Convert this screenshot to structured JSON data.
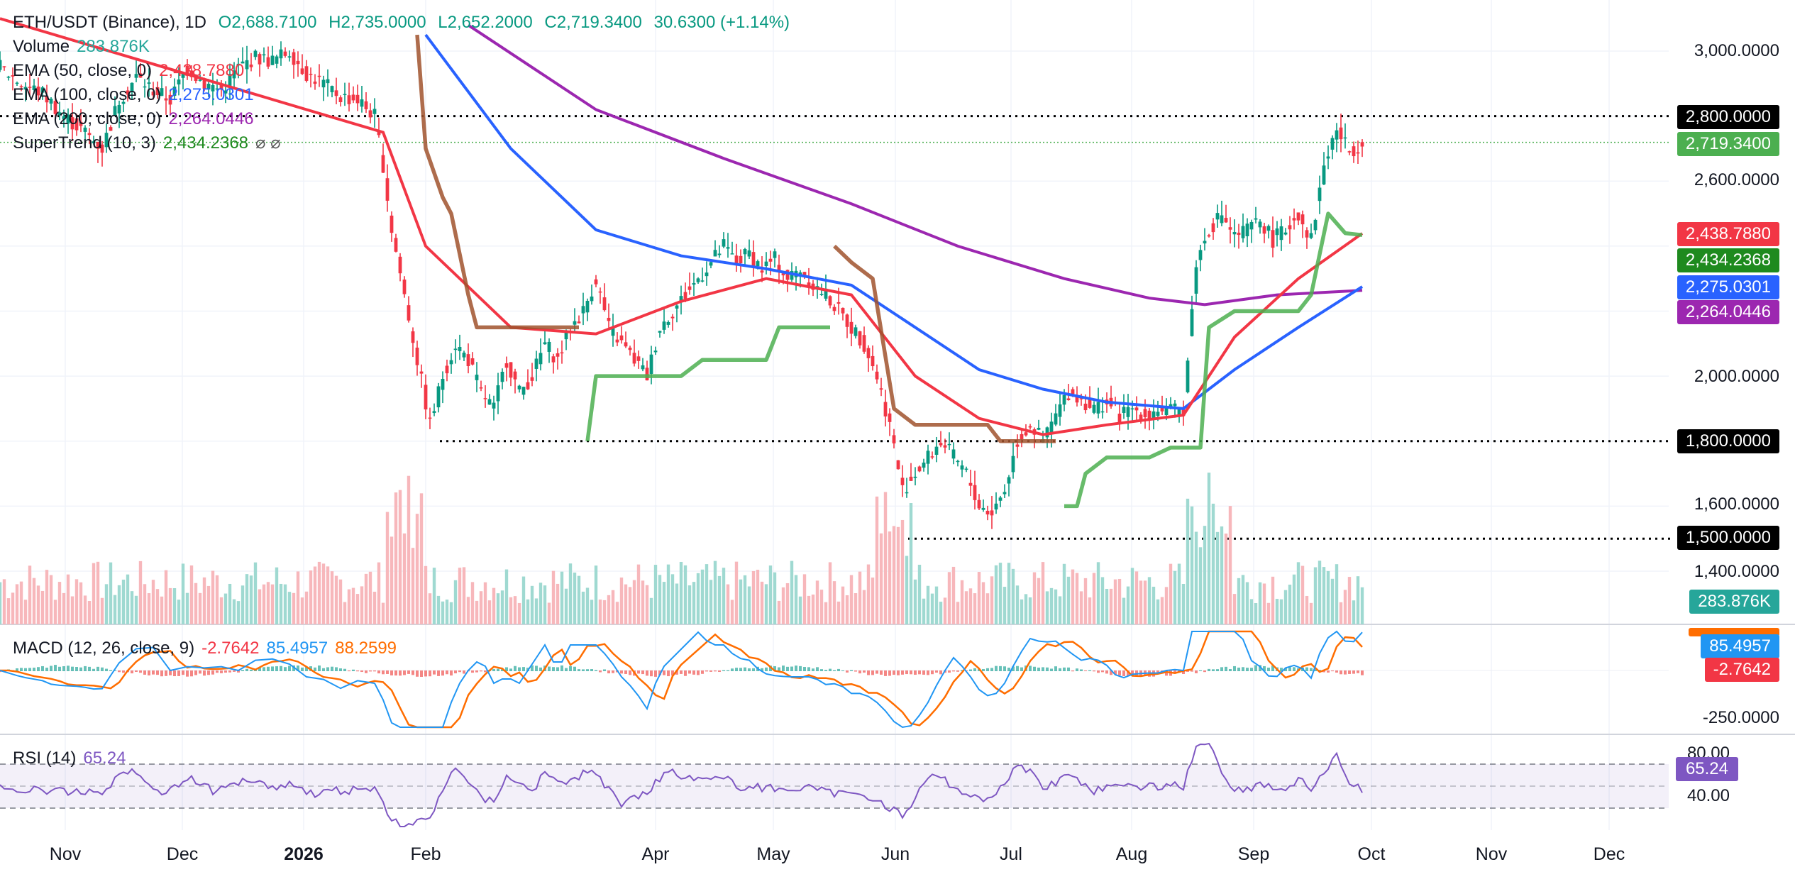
{
  "chart_data": {
    "type": "candlestick",
    "symbol": "ETH/USDT (Binance), 1D",
    "ohlc": {
      "open": "2,688.7100",
      "high": "2,735.0000",
      "low": "2,652.2000",
      "close": "2,719.3400",
      "change": "30.6300 (+1.14%)"
    },
    "legend": {
      "volume": {
        "label": "Volume",
        "value": "283.876K"
      },
      "ema50": {
        "label": "EMA (50, close, 0)",
        "value": "2,438.7880"
      },
      "ema100": {
        "label": "EMA (100, close, 0)",
        "value": "2,275.0301"
      },
      "ema200": {
        "label": "EMA (200, close, 0)",
        "value": "2,264.0446"
      },
      "supertrend": {
        "label": "SuperTrend (10, 3)",
        "value": "2,434.2368"
      }
    },
    "y_ticks": [
      "3,000.0000",
      "2,600.0000",
      "2,000.0000",
      "1,600.0000",
      "1,400.0000"
    ],
    "ylim": [
      1300,
      3080
    ],
    "x_ticks": [
      "Nov",
      "Dec",
      "2026",
      "Feb",
      "Apr",
      "May",
      "Jun",
      "Jul",
      "Aug",
      "Sep",
      "Oct",
      "Nov",
      "Dec"
    ],
    "levels": [
      {
        "value": 2800,
        "label": "2,800.0000"
      },
      {
        "value": 1800,
        "label": "1,800.0000"
      },
      {
        "value": 1500,
        "label": "1,500.0000"
      }
    ],
    "price_badges": [
      {
        "value": 2719.34,
        "label": "2,719.3400",
        "color": "#4caf50"
      },
      {
        "value": 2438.788,
        "label": "2,438.7880",
        "color": "#f23645"
      },
      {
        "value": 2434.2368,
        "label": "2,434.2368",
        "color": "#1e8a1e"
      },
      {
        "value": 2275.0301,
        "label": "2,275.0301",
        "color": "#2962ff"
      },
      {
        "value": 2264.0446,
        "label": "2,264.0446",
        "color": "#9c27b0"
      }
    ],
    "volume_badge": {
      "label": "283.876K",
      "color": "#26a69a"
    },
    "price_path": [
      [
        0,
        2950
      ],
      [
        5,
        2900
      ],
      [
        10,
        2870
      ],
      [
        15,
        2800
      ],
      [
        20,
        2750
      ],
      [
        24,
        2700
      ],
      [
        28,
        2850
      ],
      [
        32,
        2920
      ],
      [
        36,
        2880
      ],
      [
        40,
        2850
      ],
      [
        44,
        2950
      ],
      [
        48,
        2900
      ],
      [
        52,
        2880
      ],
      [
        56,
        2950
      ],
      [
        60,
        2980
      ],
      [
        64,
        2970
      ],
      [
        68,
        3000
      ],
      [
        72,
        2930
      ],
      [
        76,
        2900
      ],
      [
        80,
        2860
      ],
      [
        84,
        2850
      ],
      [
        88,
        2800
      ],
      [
        90,
        2650
      ],
      [
        92,
        2450
      ],
      [
        95,
        2250
      ],
      [
        98,
        2050
      ],
      [
        101,
        1850
      ],
      [
        104,
        2000
      ],
      [
        107,
        2100
      ],
      [
        110,
        2050
      ],
      [
        113,
        1950
      ],
      [
        116,
        1900
      ],
      [
        119,
        2050
      ],
      [
        122,
        1950
      ],
      [
        125,
        2000
      ],
      [
        128,
        2100
      ],
      [
        131,
        2050
      ],
      [
        134,
        2150
      ],
      [
        137,
        2200
      ],
      [
        140,
        2300
      ],
      [
        143,
        2150
      ],
      [
        146,
        2100
      ],
      [
        149,
        2050
      ],
      [
        152,
        2000
      ],
      [
        155,
        2150
      ],
      [
        158,
        2200
      ],
      [
        161,
        2250
      ],
      [
        164,
        2300
      ],
      [
        167,
        2350
      ],
      [
        170,
        2400
      ],
      [
        173,
        2350
      ],
      [
        176,
        2380
      ],
      [
        179,
        2330
      ],
      [
        182,
        2360
      ],
      [
        185,
        2300
      ],
      [
        188,
        2330
      ],
      [
        191,
        2280
      ],
      [
        194,
        2250
      ],
      [
        197,
        2200
      ],
      [
        200,
        2150
      ],
      [
        203,
        2100
      ],
      [
        206,
        2000
      ],
      [
        209,
        1850
      ],
      [
        212,
        1650
      ],
      [
        215,
        1700
      ],
      [
        218,
        1750
      ],
      [
        221,
        1800
      ],
      [
        224,
        1750
      ],
      [
        227,
        1700
      ],
      [
        230,
        1600
      ],
      [
        233,
        1580
      ],
      [
        236,
        1650
      ],
      [
        239,
        1800
      ],
      [
        242,
        1850
      ],
      [
        245,
        1800
      ],
      [
        248,
        1880
      ],
      [
        251,
        1950
      ],
      [
        254,
        1930
      ],
      [
        257,
        1900
      ],
      [
        260,
        1920
      ],
      [
        263,
        1880
      ],
      [
        266,
        1900
      ],
      [
        269,
        1880
      ],
      [
        272,
        1900
      ],
      [
        275,
        1890
      ],
      [
        278,
        1900
      ],
      [
        281,
        2350
      ],
      [
        284,
        2450
      ],
      [
        287,
        2500
      ],
      [
        290,
        2430
      ],
      [
        293,
        2450
      ],
      [
        296,
        2480
      ],
      [
        299,
        2420
      ],
      [
        302,
        2450
      ],
      [
        305,
        2500
      ],
      [
        308,
        2420
      ],
      [
        311,
        2650
      ],
      [
        314,
        2760
      ],
      [
        317,
        2690
      ],
      [
        320,
        2719
      ]
    ],
    "ema50_path": [
      [
        0,
        3100
      ],
      [
        90,
        2750
      ],
      [
        100,
        2400
      ],
      [
        120,
        2150
      ],
      [
        140,
        2130
      ],
      [
        160,
        2230
      ],
      [
        180,
        2300
      ],
      [
        200,
        2250
      ],
      [
        215,
        2000
      ],
      [
        230,
        1870
      ],
      [
        245,
        1820
      ],
      [
        260,
        1850
      ],
      [
        278,
        1880
      ],
      [
        290,
        2120
      ],
      [
        305,
        2300
      ],
      [
        320,
        2439
      ]
    ],
    "ema100_path": [
      [
        100,
        3050
      ],
      [
        120,
        2700
      ],
      [
        140,
        2450
      ],
      [
        160,
        2370
      ],
      [
        180,
        2330
      ],
      [
        200,
        2280
      ],
      [
        215,
        2150
      ],
      [
        230,
        2020
      ],
      [
        245,
        1960
      ],
      [
        260,
        1920
      ],
      [
        278,
        1900
      ],
      [
        290,
        2020
      ],
      [
        305,
        2150
      ],
      [
        320,
        2275
      ]
    ],
    "ema200_path": [
      [
        110,
        3080
      ],
      [
        140,
        2820
      ],
      [
        170,
        2670
      ],
      [
        200,
        2530
      ],
      [
        225,
        2400
      ],
      [
        250,
        2300
      ],
      [
        270,
        2240
      ],
      [
        283,
        2220
      ],
      [
        300,
        2250
      ],
      [
        320,
        2264
      ]
    ],
    "supertrend_segments": [
      {
        "color": "#a0522d",
        "points": [
          [
            98,
            3050
          ],
          [
            100,
            2700
          ],
          [
            104,
            2550
          ],
          [
            106,
            2500
          ],
          [
            110,
            2250
          ],
          [
            112,
            2150
          ],
          [
            120,
            2150
          ],
          [
            136,
            2150
          ]
        ]
      },
      {
        "color": "#4caf50",
        "points": [
          [
            138,
            1800
          ],
          [
            140,
            2000
          ],
          [
            145,
            2000
          ],
          [
            150,
            2000
          ],
          [
            160,
            2000
          ],
          [
            165,
            2050
          ],
          [
            170,
            2050
          ],
          [
            180,
            2050
          ],
          [
            183,
            2150
          ],
          [
            190,
            2150
          ],
          [
            195,
            2150
          ]
        ]
      },
      {
        "color": "#a0522d",
        "points": [
          [
            196,
            2400
          ],
          [
            200,
            2350
          ],
          [
            205,
            2300
          ],
          [
            210,
            1900
          ],
          [
            215,
            1850
          ],
          [
            225,
            1850
          ],
          [
            232,
            1850
          ],
          [
            235,
            1800
          ],
          [
            248,
            1800
          ]
        ]
      },
      {
        "color": "#4caf50",
        "points": [
          [
            250,
            1600
          ],
          [
            253,
            1600
          ],
          [
            255,
            1700
          ],
          [
            260,
            1750
          ],
          [
            265,
            1750
          ],
          [
            270,
            1750
          ],
          [
            275,
            1780
          ],
          [
            282,
            1780
          ],
          [
            284,
            2150
          ],
          [
            290,
            2200
          ],
          [
            305,
            2200
          ],
          [
            308,
            2250
          ],
          [
            312,
            2500
          ],
          [
            316,
            2440
          ],
          [
            320,
            2434
          ]
        ]
      }
    ]
  },
  "macd": {
    "label": "MACD (12, 26, close, 9)",
    "hist": "-2.7642",
    "macd": "85.4957",
    "signal": "88.2599",
    "tick": "-250.0000",
    "badge_macd": "85.4957",
    "badge_hist": "-2.7642"
  },
  "rsi": {
    "label": "RSI (14)",
    "value": "65.24",
    "tick_high": "80.00",
    "tick_low": "40.00",
    "badge": "65.24"
  }
}
